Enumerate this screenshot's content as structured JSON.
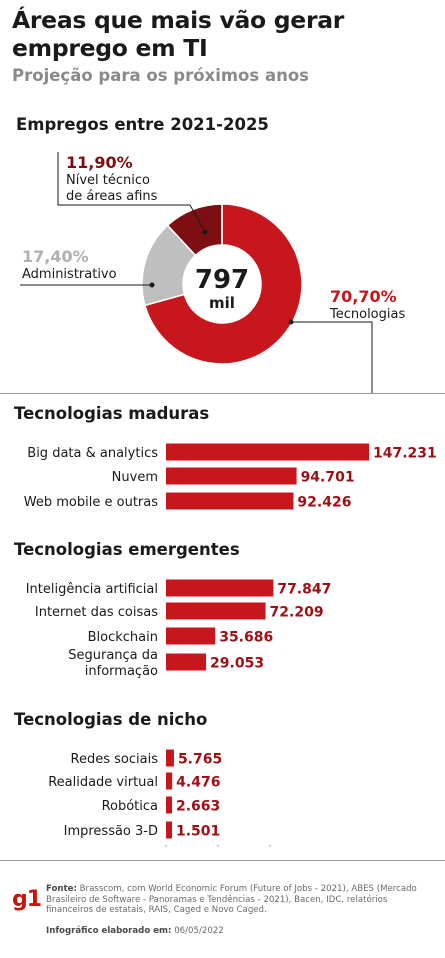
{
  "header": {
    "title": "Áreas que mais vão gerar emprego em TI",
    "subtitle": "Projeção para os próximos anos"
  },
  "chart_data": [
    {
      "type": "pie",
      "title": "Empregos entre 2021-2025",
      "center_value": "797",
      "center_unit": "mil",
      "slices": [
        {
          "label": "Tecnologias",
          "pct_label": "70,70%",
          "value": 70.7,
          "color": "#c8161d"
        },
        {
          "label": "Administrativo",
          "pct_label": "17,40%",
          "value": 17.4,
          "color": "#bfbfbf"
        },
        {
          "label": "Nível técnico de áreas afins",
          "label_lines": [
            "Nível técnico",
            "de áreas afins"
          ],
          "pct_label": "11,90%",
          "value": 11.9,
          "color": "#7d0f12"
        }
      ]
    },
    {
      "type": "bar",
      "title": "Tecnologias maduras",
      "categories": [
        "Big data & analytics",
        "Nuvem",
        "Web mobile e outras"
      ],
      "category_lines": [
        [
          "Big data & analytics"
        ],
        [
          "Nuvem"
        ],
        [
          "Web mobile e outras"
        ]
      ],
      "values": [
        147231,
        94701,
        92426
      ],
      "value_labels": [
        "147.231",
        "94.701",
        "92.426"
      ]
    },
    {
      "type": "bar",
      "title": "Tecnologias emergentes",
      "categories": [
        "Inteligência artificial",
        "Internet das coisas",
        "Blockchain",
        "Segurança da informação"
      ],
      "category_lines": [
        [
          "Inteligência artificial"
        ],
        [
          "Internet das coisas"
        ],
        [
          "Blockchain"
        ],
        [
          "Segurança da",
          "informação"
        ]
      ],
      "values": [
        77847,
        72209,
        35686,
        29053
      ],
      "value_labels": [
        "77.847",
        "72.209",
        "35.686",
        "29.053"
      ]
    },
    {
      "type": "bar",
      "title": "Tecnologias de nicho",
      "categories": [
        "Redes sociais",
        "Realidade virtual",
        "Robótica",
        "Impressão 3-D"
      ],
      "category_lines": [
        [
          "Redes sociais"
        ],
        [
          "Realidade virtual"
        ],
        [
          "Robótica"
        ],
        [
          "Impressão 3-D"
        ]
      ],
      "values": [
        5765,
        4476,
        2663,
        1501
      ],
      "value_labels": [
        "5.765",
        "4.476",
        "2.663",
        "1.501"
      ]
    }
  ],
  "colors": {
    "bar": "#c8161d",
    "value_text": "#9e0f14",
    "brand": "#c4170c"
  },
  "footer": {
    "logo": "g1",
    "source_label": "Fonte:",
    "source_text": "Brasscom, com World Economic Forum (Future of Jobs - 2021), ABES (Mercado Brasileiro de Software - Panoramas e Tendências - 2021), Bacen, IDC, relatórios financeiros de estatais, RAIS, Caged e Novo Caged.",
    "date_label": "Infográfico elaborado em:",
    "date_value": "06/05/2022"
  }
}
